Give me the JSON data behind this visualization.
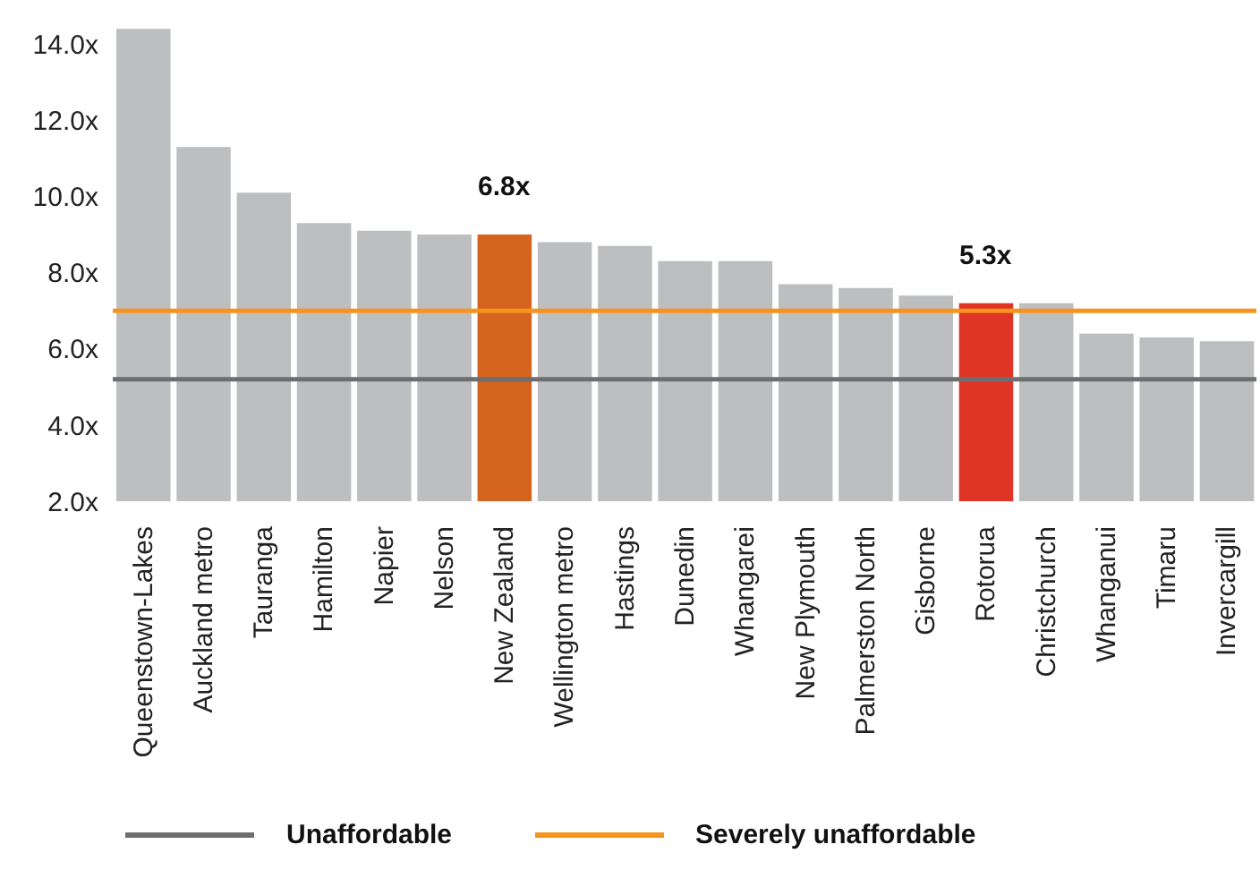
{
  "chart_data": {
    "type": "bar",
    "categories": [
      "Queenstown-Lakes",
      "Auckland metro",
      "Tauranga",
      "Hamilton",
      "Napier",
      "Nelson",
      "New Zealand",
      "Wellington metro",
      "Hastings",
      "Dunedin",
      "Whangarei",
      "New Plymouth",
      "Palmerston North",
      "Gisborne",
      "Rotorua",
      "Christchurch",
      "Whanganui",
      "Timaru",
      "Invercargill"
    ],
    "values": [
      14.4,
      11.3,
      10.1,
      9.3,
      9.1,
      9.0,
      9.0,
      8.8,
      8.7,
      8.3,
      8.3,
      7.7,
      7.6,
      7.4,
      7.2,
      7.2,
      6.4,
      6.3,
      6.2
    ],
    "colors": [
      "#bdbec0",
      "#bdbec0",
      "#bdbec0",
      "#bdbec0",
      "#bdbec0",
      "#bdbec0",
      "#d5641f",
      "#bdbec0",
      "#bdbec0",
      "#bdbec0",
      "#bdbec0",
      "#bdbec0",
      "#bdbec0",
      "#bdbec0",
      "#de3526",
      "#bdbec0",
      "#bdbec0",
      "#bdbec0",
      "#bdbec0"
    ],
    "ylim": [
      2,
      14.5
    ],
    "yticks": [
      {
        "value": 2,
        "label": "2.0x"
      },
      {
        "value": 4,
        "label": "4.0x"
      },
      {
        "value": 6,
        "label": "6.0x"
      },
      {
        "value": 8,
        "label": "8.0x"
      },
      {
        "value": 10,
        "label": "10.0x"
      },
      {
        "value": 12,
        "label": "12.0x"
      },
      {
        "value": 14,
        "label": "14.0x"
      }
    ],
    "ref_lines": [
      {
        "axis": "y",
        "value": 5.2,
        "label": "Unaffordable",
        "color": "#6d6e70"
      },
      {
        "axis": "y",
        "value": 7.0,
        "label": "Severely unaffordable",
        "color": "#f7941d"
      }
    ],
    "annotations": [
      {
        "text": "6.8x",
        "x": "New Zealand",
        "y": 9.0
      },
      {
        "text": "5.3x",
        "x": "Rotorua",
        "y": 7.2
      }
    ],
    "grid": false,
    "legend": "bottom"
  }
}
